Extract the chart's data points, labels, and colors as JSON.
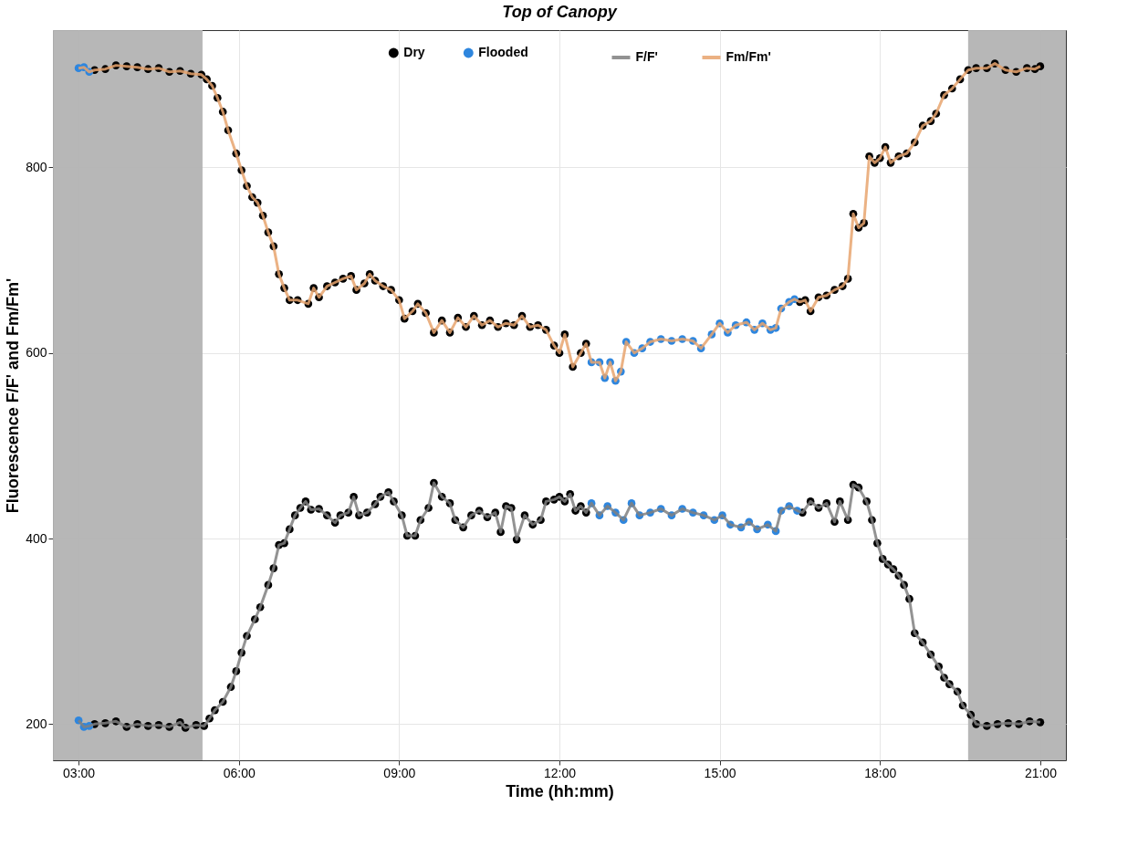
{
  "chart_data": {
    "type": "line",
    "title": "Top of Canopy",
    "xlabel": "Time (hh:mm)",
    "ylabel": "Fluorescence F/F' and Fm/Fm'",
    "xlim": [
      2.52,
      21.48
    ],
    "ylim": [
      161,
      948
    ],
    "xticks": [
      {
        "value": 3,
        "label": "03:00"
      },
      {
        "value": 6,
        "label": "06:00"
      },
      {
        "value": 9,
        "label": "09:00"
      },
      {
        "value": 12,
        "label": "12:00"
      },
      {
        "value": 15,
        "label": "15:00"
      },
      {
        "value": 18,
        "label": "18:00"
      },
      {
        "value": 21,
        "label": "21:00"
      }
    ],
    "yticks": [
      200,
      400,
      600,
      800
    ],
    "grid": true,
    "legend": "top",
    "line_style": "solid",
    "bands": [
      {
        "axis": "x",
        "from": 2.52,
        "to": 5.32,
        "color": "#b3b3b3"
      },
      {
        "axis": "x",
        "from": 19.65,
        "to": 21.48,
        "color": "#b3b3b3"
      }
    ],
    "series": [
      {
        "name": "Dry",
        "type": "scatter",
        "marker": "circle",
        "color": "#000000",
        "x": [
          3.3,
          3.5,
          3.7,
          3.9,
          4.1,
          4.3,
          4.5,
          4.7,
          4.9,
          5.0,
          5.2,
          5.35,
          5.45,
          5.55,
          5.7,
          5.85,
          5.95,
          6.05,
          6.15,
          6.3,
          6.4,
          6.55,
          6.65,
          6.75,
          6.85,
          6.95,
          7.05,
          7.15,
          7.25,
          7.35,
          7.5,
          7.65,
          7.8,
          7.9,
          8.05,
          8.15,
          8.25,
          8.4,
          8.55,
          8.65,
          8.8,
          8.9,
          9.05,
          9.15,
          9.3,
          9.4,
          9.55,
          9.65,
          9.8,
          9.95,
          10.05,
          10.2,
          10.35,
          10.5,
          10.65,
          10.8,
          10.9,
          11.0,
          11.1,
          11.2,
          11.35,
          11.5,
          11.65,
          11.75,
          11.9,
          12.0,
          12.1,
          12.2,
          12.3,
          12.4,
          12.5,
          16.55,
          16.7,
          16.85,
          17.0,
          17.15,
          17.25,
          17.4,
          17.5,
          17.6,
          17.75,
          17.85,
          17.95,
          18.05,
          18.15,
          18.25,
          18.35,
          18.45,
          18.55,
          18.65,
          18.8,
          18.95,
          19.1,
          19.2,
          19.3,
          19.45,
          19.55,
          19.7,
          19.8,
          20.0,
          20.2,
          20.4,
          20.6,
          20.8,
          21.0,
          3.3,
          3.5,
          3.7,
          3.9,
          4.1,
          4.3,
          4.5,
          4.7,
          4.9,
          5.1,
          5.3,
          5.4,
          5.5,
          5.6,
          5.7,
          5.8,
          5.95,
          6.05,
          6.15,
          6.25,
          6.35,
          6.45,
          6.55,
          6.65,
          6.75,
          6.85,
          6.95,
          7.1,
          7.3,
          7.4,
          7.5,
          7.65,
          7.8,
          7.95,
          8.1,
          8.2,
          8.35,
          8.45,
          8.55,
          8.7,
          8.85,
          9.0,
          9.1,
          9.25,
          9.35,
          9.5,
          9.65,
          9.8,
          9.95,
          10.1,
          10.25,
          10.4,
          10.55,
          10.7,
          10.85,
          11.0,
          11.15,
          11.3,
          11.45,
          11.6,
          11.75,
          11.9,
          12.0,
          12.1,
          12.25,
          12.4,
          12.5,
          16.5,
          16.6,
          16.7,
          16.85,
          17.0,
          17.15,
          17.3,
          17.4,
          17.5,
          17.6,
          17.7,
          17.8,
          17.9,
          18.0,
          18.1,
          18.2,
          18.35,
          18.5,
          18.65,
          18.8,
          18.95,
          19.05,
          19.2,
          19.35,
          19.5,
          19.65,
          19.8,
          20.0,
          20.15,
          20.35,
          20.55,
          20.75,
          20.9,
          21.0
        ],
        "values": [
          200,
          201,
          203,
          197,
          200,
          198,
          199,
          197,
          202,
          196,
          199,
          198,
          206,
          215,
          224,
          240,
          257,
          277,
          295,
          313,
          326,
          350,
          368,
          393,
          395,
          410,
          425,
          433,
          440,
          431,
          432,
          425,
          417,
          425,
          428,
          445,
          425,
          428,
          437,
          445,
          450,
          440,
          425,
          403,
          403,
          420,
          433,
          460,
          445,
          438,
          420,
          412,
          425,
          430,
          423,
          428,
          407,
          435,
          433,
          399,
          425,
          415,
          420,
          440,
          442,
          445,
          440,
          448,
          430,
          435,
          428,
          428,
          440,
          433,
          438,
          418,
          440,
          420,
          458,
          455,
          440,
          420,
          395,
          378,
          372,
          367,
          360,
          350,
          335,
          298,
          288,
          275,
          262,
          250,
          243,
          235,
          220,
          210,
          200,
          198,
          200,
          201,
          200,
          203,
          202,
          905,
          906,
          910,
          909,
          908,
          906,
          907,
          903,
          904,
          901,
          900,
          895,
          888,
          875,
          860,
          840,
          815,
          797,
          780,
          768,
          762,
          748,
          730,
          715,
          685,
          670,
          657,
          657,
          653,
          670,
          660,
          672,
          676,
          680,
          683,
          668,
          675,
          685,
          678,
          672,
          668,
          657,
          637,
          645,
          653,
          643,
          622,
          635,
          622,
          638,
          628,
          640,
          630,
          635,
          628,
          632,
          630,
          640,
          628,
          630,
          625,
          608,
          600,
          620,
          585,
          600,
          610,
          655,
          657,
          645,
          660,
          662,
          668,
          672,
          680,
          750,
          735,
          740,
          812,
          805,
          810,
          822,
          805,
          812,
          815,
          827,
          845,
          850,
          858,
          878,
          885,
          895,
          905,
          907,
          907,
          912,
          905,
          903,
          907,
          906,
          909
        ]
      },
      {
        "name": "Flooded",
        "type": "scatter",
        "marker": "circle",
        "color": "#2e86de",
        "x": [
          3.0,
          3.1,
          3.2,
          12.6,
          12.75,
          12.9,
          13.05,
          13.2,
          13.35,
          13.5,
          13.7,
          13.9,
          14.1,
          14.3,
          14.5,
          14.7,
          14.9,
          15.05,
          15.2,
          15.4,
          15.55,
          15.7,
          15.9,
          16.05,
          16.15,
          16.3,
          16.45,
          3.0,
          3.1,
          3.2,
          12.6,
          12.75,
          12.85,
          12.95,
          13.05,
          13.15,
          13.25,
          13.4,
          13.55,
          13.7,
          13.9,
          14.1,
          14.3,
          14.5,
          14.65,
          14.85,
          15.0,
          15.15,
          15.3,
          15.5,
          15.65,
          15.8,
          15.95,
          16.05,
          16.15,
          16.3,
          16.4
        ],
        "values": [
          204,
          197,
          198,
          438,
          425,
          435,
          428,
          420,
          438,
          425,
          428,
          432,
          425,
          432,
          428,
          425,
          420,
          425,
          415,
          412,
          418,
          410,
          415,
          408,
          430,
          435,
          430,
          907,
          908,
          903,
          590,
          590,
          573,
          590,
          570,
          580,
          612,
          600,
          605,
          612,
          615,
          613,
          615,
          613,
          605,
          620,
          632,
          622,
          630,
          633,
          625,
          632,
          625,
          627,
          648,
          655,
          658
        ]
      },
      {
        "name": "F/F'",
        "marker": "none",
        "color": "#808080",
        "x": [
          3.0,
          3.1,
          3.2,
          3.3,
          3.5,
          3.7,
          3.9,
          4.1,
          4.3,
          4.5,
          4.7,
          4.9,
          5.0,
          5.2,
          5.35,
          5.45,
          5.55,
          5.7,
          5.85,
          5.95,
          6.05,
          6.15,
          6.3,
          6.4,
          6.55,
          6.65,
          6.75,
          6.85,
          6.95,
          7.05,
          7.15,
          7.25,
          7.35,
          7.5,
          7.65,
          7.8,
          7.9,
          8.05,
          8.15,
          8.25,
          8.4,
          8.55,
          8.65,
          8.8,
          8.9,
          9.05,
          9.15,
          9.3,
          9.4,
          9.55,
          9.65,
          9.8,
          9.95,
          10.05,
          10.2,
          10.35,
          10.5,
          10.65,
          10.8,
          10.9,
          11.0,
          11.1,
          11.2,
          11.35,
          11.5,
          11.65,
          11.75,
          11.9,
          12.0,
          12.1,
          12.2,
          12.3,
          12.4,
          12.5,
          12.6,
          12.75,
          12.9,
          13.05,
          13.2,
          13.35,
          13.5,
          13.7,
          13.9,
          14.1,
          14.3,
          14.5,
          14.7,
          14.9,
          15.05,
          15.2,
          15.4,
          15.55,
          15.7,
          15.9,
          16.05,
          16.15,
          16.3,
          16.45,
          16.55,
          16.7,
          16.85,
          17.0,
          17.15,
          17.25,
          17.4,
          17.5,
          17.6,
          17.75,
          17.85,
          17.95,
          18.05,
          18.15,
          18.25,
          18.35,
          18.45,
          18.55,
          18.65,
          18.8,
          18.95,
          19.1,
          19.2,
          19.3,
          19.45,
          19.55,
          19.7,
          19.8,
          20.0,
          20.2,
          20.4,
          20.6,
          20.8,
          21.0
        ],
        "values": [
          204,
          197,
          198,
          200,
          201,
          203,
          197,
          200,
          198,
          199,
          197,
          202,
          196,
          199,
          198,
          206,
          215,
          224,
          240,
          257,
          277,
          295,
          313,
          326,
          350,
          368,
          393,
          395,
          410,
          425,
          433,
          440,
          431,
          432,
          425,
          417,
          425,
          428,
          445,
          425,
          428,
          437,
          445,
          450,
          440,
          425,
          403,
          403,
          420,
          433,
          460,
          445,
          438,
          420,
          412,
          425,
          430,
          423,
          428,
          407,
          435,
          433,
          399,
          425,
          415,
          420,
          440,
          442,
          445,
          440,
          448,
          430,
          435,
          428,
          438,
          425,
          435,
          428,
          420,
          438,
          425,
          428,
          432,
          425,
          432,
          428,
          425,
          420,
          425,
          415,
          412,
          418,
          410,
          415,
          408,
          430,
          435,
          430,
          428,
          440,
          433,
          438,
          418,
          440,
          420,
          458,
          455,
          440,
          420,
          395,
          378,
          372,
          367,
          360,
          350,
          335,
          298,
          288,
          275,
          262,
          250,
          243,
          235,
          220,
          210,
          200,
          198,
          200,
          201,
          200,
          203,
          202
        ]
      },
      {
        "name": "Fm/Fm'",
        "marker": "none",
        "color": "#e8a46e",
        "x": [
          3.0,
          3.1,
          3.2,
          3.3,
          3.5,
          3.7,
          3.9,
          4.1,
          4.3,
          4.5,
          4.7,
          4.9,
          5.1,
          5.3,
          5.4,
          5.5,
          5.6,
          5.7,
          5.8,
          5.95,
          6.05,
          6.15,
          6.25,
          6.35,
          6.45,
          6.55,
          6.65,
          6.75,
          6.85,
          6.95,
          7.1,
          7.3,
          7.4,
          7.5,
          7.65,
          7.8,
          7.95,
          8.1,
          8.2,
          8.35,
          8.45,
          8.55,
          8.7,
          8.85,
          9.0,
          9.1,
          9.25,
          9.35,
          9.5,
          9.65,
          9.8,
          9.95,
          10.1,
          10.25,
          10.4,
          10.55,
          10.7,
          10.85,
          11.0,
          11.15,
          11.3,
          11.45,
          11.6,
          11.75,
          11.9,
          12.0,
          12.1,
          12.25,
          12.4,
          12.5,
          12.6,
          12.75,
          12.85,
          12.95,
          13.05,
          13.15,
          13.25,
          13.4,
          13.55,
          13.7,
          13.9,
          14.1,
          14.3,
          14.5,
          14.65,
          14.85,
          15.0,
          15.15,
          15.3,
          15.5,
          15.65,
          15.8,
          15.95,
          16.05,
          16.15,
          16.3,
          16.4,
          16.5,
          16.6,
          16.7,
          16.85,
          17.0,
          17.15,
          17.3,
          17.4,
          17.5,
          17.6,
          17.7,
          17.8,
          17.9,
          18.0,
          18.1,
          18.2,
          18.35,
          18.5,
          18.65,
          18.8,
          18.95,
          19.05,
          19.2,
          19.35,
          19.5,
          19.65,
          19.8,
          20.0,
          20.15,
          20.35,
          20.55,
          20.75,
          20.9,
          21.0
        ],
        "values": [
          907,
          908,
          903,
          905,
          906,
          910,
          909,
          908,
          906,
          907,
          903,
          904,
          901,
          900,
          895,
          888,
          875,
          860,
          840,
          815,
          797,
          780,
          768,
          762,
          748,
          730,
          715,
          685,
          670,
          657,
          657,
          653,
          670,
          660,
          672,
          676,
          680,
          683,
          668,
          675,
          685,
          678,
          672,
          668,
          657,
          637,
          645,
          653,
          643,
          622,
          635,
          622,
          638,
          628,
          640,
          630,
          635,
          628,
          632,
          630,
          640,
          628,
          630,
          625,
          608,
          600,
          620,
          585,
          600,
          610,
          590,
          590,
          573,
          590,
          570,
          580,
          612,
          600,
          605,
          612,
          615,
          613,
          615,
          613,
          605,
          620,
          632,
          622,
          630,
          633,
          625,
          632,
          625,
          627,
          648,
          655,
          658,
          655,
          657,
          645,
          660,
          662,
          668,
          672,
          680,
          750,
          735,
          740,
          812,
          805,
          810,
          822,
          805,
          812,
          815,
          827,
          845,
          850,
          858,
          878,
          885,
          895,
          905,
          907,
          907,
          912,
          905,
          903,
          907,
          906,
          909
        ]
      }
    ]
  }
}
